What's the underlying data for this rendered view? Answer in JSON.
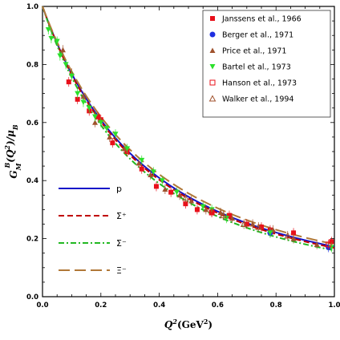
{
  "chart_data": {
    "type": "scatter",
    "xlabel": "Q²(GeV²)",
    "ylabel": "G_M^B(Q²)/μ_B",
    "xlim": [
      0,
      1
    ],
    "ylim": [
      0,
      1
    ],
    "x_ticks": [
      "0.0",
      "0.2",
      "0.4",
      "0.6",
      "0.8",
      "1.0"
    ],
    "y_ticks": [
      "0.0",
      "0.2",
      "0.4",
      "0.6",
      "0.8",
      "1.0"
    ],
    "grid": false,
    "legend_position": "top-right",
    "data_series": [
      {
        "name": "Janssens et al., 1966",
        "marker": "square-filled",
        "color": "#e8101a",
        "points": [
          [
            0.09,
            0.74
          ],
          [
            0.12,
            0.68
          ],
          [
            0.16,
            0.64
          ],
          [
            0.19,
            0.62
          ],
          [
            0.2,
            0.61
          ],
          [
            0.24,
            0.53
          ],
          [
            0.29,
            0.5
          ],
          [
            0.34,
            0.44
          ],
          [
            0.39,
            0.38
          ],
          [
            0.44,
            0.36
          ],
          [
            0.49,
            0.32
          ],
          [
            0.53,
            0.3
          ],
          [
            0.58,
            0.29
          ],
          [
            0.64,
            0.28
          ],
          [
            0.7,
            0.25
          ],
          [
            0.75,
            0.24
          ],
          [
            0.78,
            0.23
          ],
          [
            0.86,
            0.22
          ],
          [
            0.99,
            0.19
          ]
        ]
      },
      {
        "name": "Berger et al., 1971",
        "marker": "circle-filled",
        "color": "#1f2ee0",
        "points": [
          [
            0.78,
            0.22
          ],
          [
            0.98,
            0.17
          ]
        ]
      },
      {
        "name": "Price et al., 1971",
        "marker": "triangle-up-filled",
        "color": "#a0522d",
        "points": [
          [
            0.07,
            0.85
          ],
          [
            0.1,
            0.77
          ],
          [
            0.14,
            0.69
          ],
          [
            0.18,
            0.6
          ],
          [
            0.23,
            0.55
          ],
          [
            0.28,
            0.51
          ],
          [
            0.33,
            0.46
          ],
          [
            0.37,
            0.42
          ],
          [
            0.42,
            0.37
          ],
          [
            0.47,
            0.35
          ],
          [
            0.51,
            0.33
          ],
          [
            0.56,
            0.3
          ],
          [
            0.61,
            0.29
          ],
          [
            0.65,
            0.27
          ],
          [
            0.72,
            0.25
          ],
          [
            0.79,
            0.23
          ],
          [
            0.86,
            0.2
          ],
          [
            0.94,
            0.18
          ]
        ]
      },
      {
        "name": "Bartel et al., 1973",
        "marker": "triangle-down-filled",
        "color": "#2be02b",
        "points": [
          [
            0.02,
            0.92
          ],
          [
            0.03,
            0.89
          ],
          [
            0.05,
            0.88
          ],
          [
            0.06,
            0.83
          ],
          [
            0.08,
            0.8
          ],
          [
            0.1,
            0.76
          ],
          [
            0.12,
            0.7
          ],
          [
            0.14,
            0.67
          ],
          [
            0.16,
            0.65
          ],
          [
            0.18,
            0.62
          ],
          [
            0.2,
            0.6
          ],
          [
            0.22,
            0.58
          ],
          [
            0.25,
            0.56
          ],
          [
            0.29,
            0.51
          ],
          [
            0.34,
            0.47
          ],
          [
            0.38,
            0.43
          ],
          [
            0.41,
            0.4
          ],
          [
            0.46,
            0.36
          ],
          [
            0.55,
            0.31
          ],
          [
            0.58,
            0.3
          ],
          [
            0.63,
            0.27
          ],
          [
            0.78,
            0.22
          ],
          [
            0.99,
            0.17
          ]
        ]
      },
      {
        "name": "Hanson et al., 1973",
        "marker": "square-open",
        "color": "#e8101a",
        "points": [
          [
            0.58,
            0.29
          ],
          [
            0.98,
            0.18
          ]
        ]
      },
      {
        "name": "Walker et al., 1994",
        "marker": "triangle-up-open",
        "color": "#a0522d",
        "points": [
          [
            0.49,
            0.34
          ],
          [
            0.62,
            0.28
          ],
          [
            0.69,
            0.25
          ],
          [
            0.74,
            0.24
          ],
          [
            0.84,
            0.21
          ]
        ]
      }
    ],
    "curves": [
      {
        "name": "p",
        "label": "p",
        "color": "#1414c8",
        "dash": "solid",
        "lambda2": 0.71
      },
      {
        "name": "Σ⁺",
        "label": "Σ⁺",
        "color": "#c00000",
        "dash": "dashed",
        "lambda2": 0.695
      },
      {
        "name": "Σ⁻",
        "label": "Σ⁻",
        "color": "#22b822",
        "dash": "dashdot",
        "lambda2": 0.665
      },
      {
        "name": "Ξ⁻",
        "label": "Ξ⁻",
        "color": "#b07838",
        "dash": "longdash",
        "lambda2": 0.74
      }
    ]
  },
  "legend": {
    "entries": [
      "Janssens et al., 1966",
      "Berger et al., 1971",
      "Price et al., 1971",
      "Bartel et al., 1973",
      "Hanson et al., 1973",
      "Walker et al., 1994"
    ]
  }
}
